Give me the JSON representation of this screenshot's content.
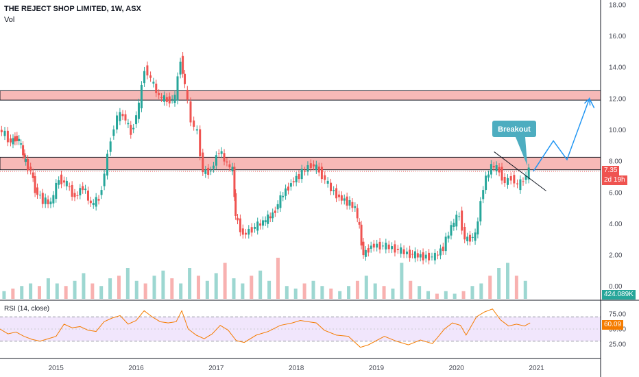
{
  "title": "THE REJECT SHOP LIMITED, 1W, ASX",
  "vol_label": "Vol",
  "rsi_label": "RSI (14, close)",
  "price_tags": {
    "last_price": "7.35",
    "countdown": "2d 19h",
    "volume": "424.089K",
    "rsi": "60.09"
  },
  "annotation": "Breakout",
  "colors": {
    "up": "#26a69a",
    "down": "#ef5350",
    "zone_fill": "#f7b9b7",
    "projection": "#2196f3",
    "rsi_line": "#f57c00",
    "rsi_band": "#f1e6fc",
    "callout": "#4dadc0"
  },
  "chart_data": [
    {
      "type": "line",
      "title": "THE REJECT SHOP LIMITED, 1W, ASX",
      "xlabel": "",
      "ylabel": "",
      "x_ticks": [
        "2015",
        "2016",
        "2017",
        "2018",
        "2019",
        "2020",
        "2021"
      ],
      "x_range": [
        2014.3,
        2021.8
      ],
      "y_ticks": [
        "0.00",
        "2.00",
        "4.00",
        "6.00",
        "8.00",
        "10.00",
        "12.00",
        "14.00",
        "16.00",
        "18.00"
      ],
      "ylim": [
        -0.8,
        18.3
      ],
      "series": [
        {
          "points": [
            [
              2014.3,
              10.0
            ],
            [
              2014.38,
              9.7
            ],
            [
              2014.45,
              9.2
            ],
            [
              2014.5,
              9.5
            ],
            [
              2014.55,
              9.3
            ],
            [
              2014.6,
              8.5
            ],
            [
              2014.63,
              7.9
            ],
            [
              2014.7,
              7.4
            ],
            [
              2014.75,
              6.2
            ],
            [
              2014.85,
              5.5
            ],
            [
              2014.95,
              5.3
            ],
            [
              2015.05,
              6.9
            ],
            [
              2015.15,
              6.5
            ],
            [
              2015.25,
              5.7
            ],
            [
              2015.35,
              6.4
            ],
            [
              2015.45,
              5.2
            ],
            [
              2015.55,
              5.6
            ],
            [
              2015.62,
              7.2
            ],
            [
              2015.7,
              9.5
            ],
            [
              2015.78,
              10.8
            ],
            [
              2015.85,
              11.0
            ],
            [
              2015.95,
              9.8
            ],
            [
              2016.05,
              11.5
            ],
            [
              2016.12,
              14.0
            ],
            [
              2016.2,
              13.2
            ],
            [
              2016.3,
              12.1
            ],
            [
              2016.4,
              11.9
            ],
            [
              2016.5,
              12.0
            ],
            [
              2016.57,
              14.6
            ],
            [
              2016.62,
              12.8
            ],
            [
              2016.7,
              10.6
            ],
            [
              2016.78,
              9.8
            ],
            [
              2016.85,
              7.3
            ],
            [
              2016.95,
              7.4
            ],
            [
              2017.05,
              8.7
            ],
            [
              2017.15,
              7.8
            ],
            [
              2017.22,
              7.4
            ],
            [
              2017.25,
              4.5
            ],
            [
              2017.35,
              3.3
            ],
            [
              2017.5,
              3.8
            ],
            [
              2017.6,
              4.1
            ],
            [
              2017.72,
              4.6
            ],
            [
              2017.85,
              5.9
            ],
            [
              2017.95,
              6.6
            ],
            [
              2018.05,
              7.1
            ],
            [
              2018.2,
              7.8
            ],
            [
              2018.3,
              7.4
            ],
            [
              2018.45,
              6.2
            ],
            [
              2018.55,
              5.7
            ],
            [
              2018.65,
              5.4
            ],
            [
              2018.75,
              5.0
            ],
            [
              2018.8,
              3.7
            ],
            [
              2018.85,
              2.0
            ],
            [
              2018.95,
              2.6
            ],
            [
              2019.1,
              2.6
            ],
            [
              2019.25,
              2.4
            ],
            [
              2019.4,
              2.1
            ],
            [
              2019.6,
              1.9
            ],
            [
              2019.75,
              1.9
            ],
            [
              2019.85,
              2.5
            ],
            [
              2019.95,
              3.8
            ],
            [
              2020.05,
              4.6
            ],
            [
              2020.12,
              3.0
            ],
            [
              2020.25,
              3.2
            ],
            [
              2020.35,
              6.4
            ],
            [
              2020.45,
              7.7
            ],
            [
              2020.55,
              7.4
            ],
            [
              2020.62,
              6.6
            ],
            [
              2020.7,
              7.0
            ],
            [
              2020.78,
              6.4
            ],
            [
              2020.85,
              6.8
            ],
            [
              2020.92,
              7.35
            ]
          ]
        }
      ],
      "resistance_zones": [
        [
          7.45,
          8.25
        ],
        [
          11.9,
          12.5
        ]
      ],
      "trendline": [
        [
          2020.47,
          8.6
        ],
        [
          2021.12,
          6.1
        ]
      ],
      "projection": [
        [
          2020.96,
          7.35
        ],
        [
          2021.21,
          9.3
        ],
        [
          2021.38,
          8.1
        ],
        [
          2021.66,
          12.0
        ],
        [
          2021.72,
          11.4
        ]
      ],
      "annotations": [
        "Breakout"
      ]
    },
    {
      "type": "area",
      "title": "Vol",
      "xlabel": "",
      "ylabel": "",
      "values": [
        3,
        4,
        5,
        6,
        5,
        8,
        6,
        5,
        7,
        10,
        6,
        5,
        8,
        9,
        12,
        7,
        6,
        9,
        11,
        8,
        6,
        12,
        9,
        7,
        10,
        14,
        8,
        6,
        9,
        11,
        7,
        16,
        5,
        4,
        6,
        7,
        5,
        4,
        3,
        5,
        7,
        9,
        6,
        5,
        4,
        14,
        7,
        5,
        3,
        2,
        3,
        2,
        3,
        5,
        6,
        9,
        12,
        14,
        9,
        7
      ],
      "max_label": "424.089K"
    },
    {
      "type": "line",
      "title": "RSI (14, close)",
      "xlabel": "",
      "ylabel": "",
      "y_ticks": [
        "25.00",
        "50.00",
        "75.00"
      ],
      "ylim": [
        5,
        95
      ],
      "band": [
        30,
        70
      ],
      "series": [
        {
          "points": [
            [
              2014.3,
              50
            ],
            [
              2014.4,
              42
            ],
            [
              2014.5,
              45
            ],
            [
              2014.6,
              38
            ],
            [
              2014.7,
              33
            ],
            [
              2014.8,
              30
            ],
            [
              2014.9,
              34
            ],
            [
              2015.0,
              38
            ],
            [
              2015.1,
              58
            ],
            [
              2015.2,
              52
            ],
            [
              2015.3,
              54
            ],
            [
              2015.4,
              48
            ],
            [
              2015.5,
              46
            ],
            [
              2015.6,
              62
            ],
            [
              2015.7,
              68
            ],
            [
              2015.8,
              72
            ],
            [
              2015.9,
              58
            ],
            [
              2016.0,
              64
            ],
            [
              2016.1,
              80
            ],
            [
              2016.2,
              70
            ],
            [
              2016.3,
              62
            ],
            [
              2016.4,
              60
            ],
            [
              2016.5,
              62
            ],
            [
              2016.57,
              80
            ],
            [
              2016.65,
              50
            ],
            [
              2016.75,
              40
            ],
            [
              2016.85,
              34
            ],
            [
              2016.95,
              42
            ],
            [
              2017.05,
              56
            ],
            [
              2017.15,
              48
            ],
            [
              2017.25,
              31
            ],
            [
              2017.35,
              28
            ],
            [
              2017.5,
              40
            ],
            [
              2017.65,
              46
            ],
            [
              2017.8,
              56
            ],
            [
              2017.95,
              60
            ],
            [
              2018.05,
              64
            ],
            [
              2018.15,
              62
            ],
            [
              2018.25,
              60
            ],
            [
              2018.35,
              48
            ],
            [
              2018.5,
              40
            ],
            [
              2018.65,
              38
            ],
            [
              2018.8,
              20
            ],
            [
              2018.9,
              24
            ],
            [
              2019.1,
              38
            ],
            [
              2019.25,
              30
            ],
            [
              2019.4,
              24
            ],
            [
              2019.55,
              32
            ],
            [
              2019.7,
              26
            ],
            [
              2019.85,
              50
            ],
            [
              2019.95,
              60
            ],
            [
              2020.05,
              56
            ],
            [
              2020.12,
              40
            ],
            [
              2020.25,
              70
            ],
            [
              2020.35,
              78
            ],
            [
              2020.45,
              83
            ],
            [
              2020.55,
              65
            ],
            [
              2020.65,
              55
            ],
            [
              2020.75,
              58
            ],
            [
              2020.85,
              55
            ],
            [
              2020.92,
              60.09
            ]
          ]
        }
      ]
    }
  ]
}
